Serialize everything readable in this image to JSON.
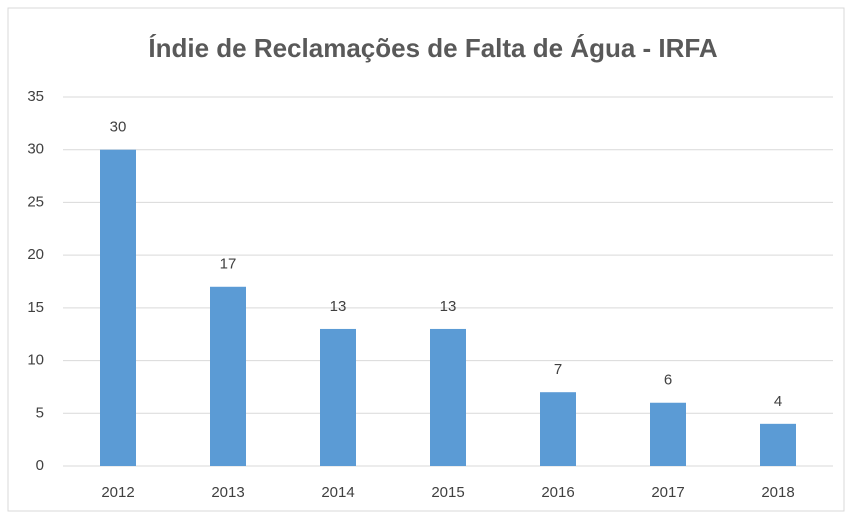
{
  "chart_data": {
    "type": "bar",
    "title": "Índie de Reclamações de Falta de Água - IRFA",
    "categories": [
      "2012",
      "2013",
      "2014",
      "2015",
      "2016",
      "2017",
      "2018"
    ],
    "values": [
      30,
      17,
      13,
      13,
      7,
      6,
      4
    ],
    "color": "#5b9bd5",
    "ylim": [
      0,
      35
    ],
    "yticks": [
      0,
      5,
      10,
      15,
      20,
      25,
      30,
      35
    ],
    "grid": true,
    "data_labels": true
  }
}
